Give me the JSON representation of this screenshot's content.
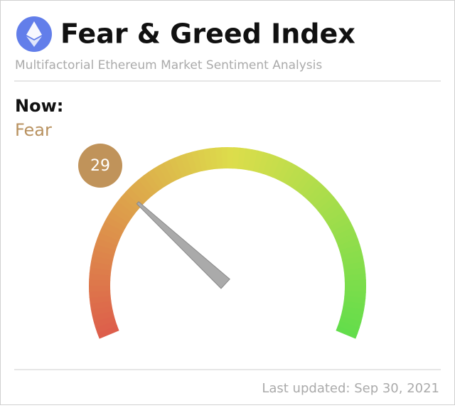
{
  "chart_data": {
    "type": "gauge",
    "title": "Fear & Greed Index",
    "subtitle": "Multifactorial Ethereum Market Sentiment Analysis",
    "now_label": "Now:",
    "classification": "Fear",
    "value": 29,
    "range": [
      0,
      100
    ],
    "footer": "Last updated: Sep 30, 2021",
    "value_color": "#c0935a"
  }
}
